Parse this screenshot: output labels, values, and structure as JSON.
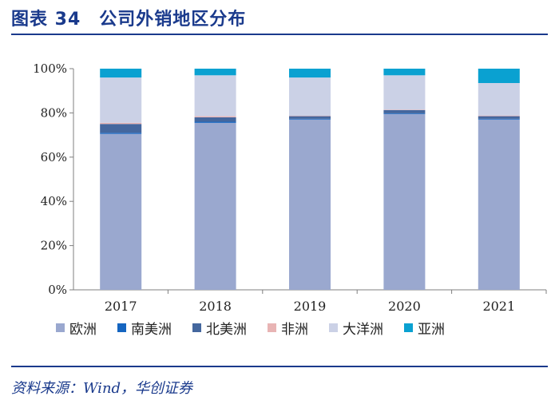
{
  "header": {
    "title": "图表 34　公司外销地区分布"
  },
  "footer": {
    "source": "资料来源：Wind，华创证券"
  },
  "colors": {
    "title": "#1a3a8c",
    "欧洲": "#9aa8cf",
    "南美洲": "#1565c0",
    "北美洲": "#44679e",
    "非洲": "#e8b4b4",
    "大洋洲": "#cbd1e6",
    "亚洲": "#0aa1d1"
  },
  "chart_data": {
    "type": "bar",
    "stacked": true,
    "title": "公司外销地区分布",
    "xlabel": "",
    "ylabel": "",
    "ylim": [
      0,
      100
    ],
    "yticks": [
      "0%",
      "20%",
      "40%",
      "60%",
      "80%",
      "100%"
    ],
    "categories": [
      "2017",
      "2018",
      "2019",
      "2020",
      "2021"
    ],
    "series": [
      {
        "name": "欧洲",
        "values": [
          70.5,
          75.5,
          77.0,
          79.5,
          77.0
        ]
      },
      {
        "name": "南美洲",
        "values": [
          0.5,
          0.5,
          0.3,
          0.3,
          0.3
        ]
      },
      {
        "name": "北美洲",
        "values": [
          4.0,
          2.0,
          1.2,
          1.5,
          1.2
        ]
      },
      {
        "name": "非洲",
        "values": [
          0.5,
          0.5,
          0.2,
          0.2,
          0.3
        ]
      },
      {
        "name": "大洋洲",
        "values": [
          20.5,
          18.5,
          17.3,
          15.5,
          14.7
        ]
      },
      {
        "name": "亚洲",
        "values": [
          4.0,
          3.0,
          4.0,
          3.0,
          6.5
        ]
      }
    ],
    "legend_position": "bottom"
  }
}
